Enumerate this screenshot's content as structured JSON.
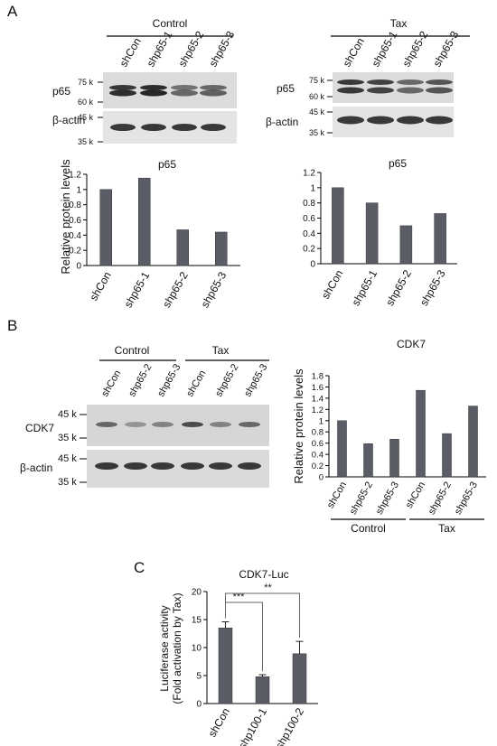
{
  "panels": {
    "A": {
      "letter": "A",
      "control_label": "Control",
      "tax_label": "Tax",
      "lanes": [
        "shCon",
        "shp65-1",
        "shp65-2",
        "shp65-3"
      ],
      "p65_label": "p65",
      "actin_label": "β-actin",
      "markers_p65": [
        "75 k",
        "60 k"
      ],
      "markers_actin": [
        "45 k",
        "35 k"
      ]
    },
    "B": {
      "letter": "B",
      "control_label": "Control",
      "tax_label": "Tax",
      "lanes": [
        "shCon",
        "shp65-2",
        "shp65-3",
        "shCon",
        "shp65-2",
        "shp65-3"
      ],
      "cdk7_label": "CDK7",
      "actin_label": "β-actin",
      "markers_cdk7": [
        "45 k",
        "35 k"
      ],
      "markers_actin": [
        "45 k",
        "35 k"
      ]
    },
    "C": {
      "letter": "C"
    }
  },
  "chart_data": [
    {
      "id": "A-control",
      "type": "bar",
      "title": "p65",
      "ylabel": "Relative protein levels",
      "categories": [
        "shCon",
        "shp65-1",
        "shp65-2",
        "shp65-3"
      ],
      "values": [
        1.0,
        1.15,
        0.47,
        0.44
      ],
      "ylim": [
        0,
        1.2
      ],
      "yticks": [
        "0",
        "0.2",
        "0.4",
        "0.6",
        "0.8",
        "1",
        "1.2"
      ],
      "grid": false
    },
    {
      "id": "A-tax",
      "type": "bar",
      "title": "p65",
      "categories": [
        "shCon",
        "shp65-1",
        "shp65-2",
        "shp65-3"
      ],
      "values": [
        1.0,
        0.8,
        0.5,
        0.66
      ],
      "ylim": [
        0,
        1.2
      ],
      "yticks": [
        "0",
        "0.2",
        "0.4",
        "0.6",
        "0.8",
        "1",
        "1.2"
      ],
      "grid": false
    },
    {
      "id": "B-cdk7",
      "type": "bar",
      "title": "CDK7",
      "ylabel": "Relative protein levels",
      "categories": [
        "shCon",
        "shp65-2",
        "shp65-3",
        "shCon",
        "shp65-2",
        "shp65-3"
      ],
      "values": [
        1.0,
        0.59,
        0.67,
        1.54,
        0.77,
        1.26
      ],
      "groups": [
        {
          "name": "Control",
          "span": [
            0,
            2
          ]
        },
        {
          "name": "Tax",
          "span": [
            3,
            5
          ]
        }
      ],
      "ylim": [
        0,
        1.8
      ],
      "yticks": [
        "0",
        "0.2",
        "0.4",
        "0.6",
        "0.8",
        "1",
        "1.2",
        "1.4",
        "1.6",
        "1.8"
      ],
      "grid": false
    },
    {
      "id": "C-luc",
      "type": "bar",
      "title": "CDK7-Luc",
      "ylabel_lines": [
        "Luciferase activity",
        "(Fold activation by Tax)"
      ],
      "categories": [
        "shCon",
        "shp100-1",
        "shp100-2"
      ],
      "values": [
        13.5,
        4.8,
        8.9
      ],
      "errors": [
        1.1,
        0.35,
        2.2
      ],
      "ylim": [
        0,
        20
      ],
      "yticks": [
        "0",
        "5",
        "10",
        "15",
        "20"
      ],
      "significance": [
        {
          "from": 0,
          "to": 1,
          "label": "***"
        },
        {
          "from": 0,
          "to": 2,
          "label": "**"
        }
      ],
      "grid": false
    }
  ],
  "colors": {
    "bar": "#5a5d66",
    "blot_bg": "#d9d9d9",
    "band": "#1b1b1b"
  }
}
